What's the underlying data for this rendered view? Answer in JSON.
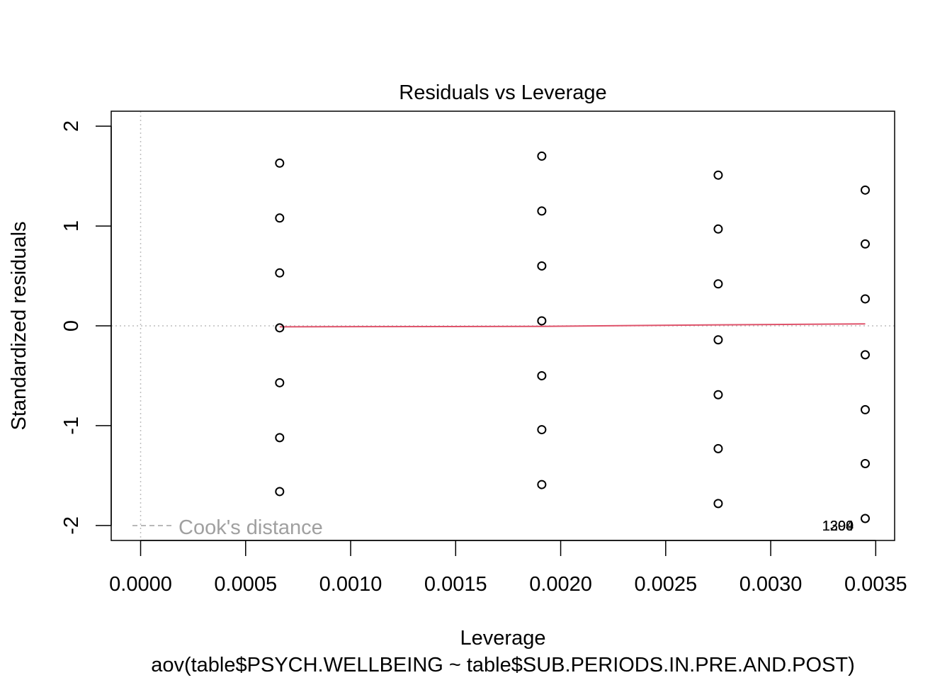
{
  "chart_data": {
    "type": "scatter",
    "title": "Residuals vs Leverage",
    "xlabel": "Leverage",
    "subtitle": "aov(table$PSYCH.WELLBEING ~ table$SUB.PERIODS.IN.PRE.AND.POST)",
    "ylabel": "Standardized residuals",
    "xlim": [
      -0.00014,
      0.00359
    ],
    "ylim": [
      -2.15,
      2.15
    ],
    "x_ticks": [
      0.0,
      0.0005,
      0.001,
      0.0015,
      0.002,
      0.0025,
      0.003,
      0.0035
    ],
    "x_tick_labels": [
      "0.0000",
      "0.0005",
      "0.0010",
      "0.0015",
      "0.0020",
      "0.0025",
      "0.0030",
      "0.0035"
    ],
    "y_ticks": [
      -2,
      -1,
      0,
      1,
      2
    ],
    "y_tick_labels": [
      "-2",
      "-1",
      "0",
      "1",
      "2"
    ],
    "series": [
      {
        "points": [
          [
            0.000662,
            1.63
          ],
          [
            0.000662,
            1.08
          ],
          [
            0.000662,
            0.53
          ],
          [
            0.000662,
            -0.02
          ],
          [
            0.000662,
            -0.57
          ],
          [
            0.000662,
            -1.12
          ],
          [
            0.000662,
            -1.66
          ],
          [
            0.00191,
            1.7
          ],
          [
            0.00191,
            1.15
          ],
          [
            0.00191,
            0.6
          ],
          [
            0.00191,
            0.05
          ],
          [
            0.00191,
            -0.5
          ],
          [
            0.00191,
            -1.04
          ],
          [
            0.00191,
            -1.59
          ],
          [
            0.00275,
            1.51
          ],
          [
            0.00275,
            0.97
          ],
          [
            0.00275,
            0.42
          ],
          [
            0.00275,
            -0.14
          ],
          [
            0.00275,
            -0.69
          ],
          [
            0.00275,
            -1.23
          ],
          [
            0.00275,
            -1.78
          ],
          [
            0.00345,
            1.36
          ],
          [
            0.00345,
            0.82
          ],
          [
            0.00345,
            0.27
          ],
          [
            0.00345,
            -0.29
          ],
          [
            0.00345,
            -0.84
          ],
          [
            0.00345,
            -1.38
          ],
          [
            0.00345,
            -1.93
          ]
        ],
        "color": "#000000"
      }
    ],
    "smooth_line": {
      "x": [
        0.000662,
        0.00191,
        0.00275,
        0.00345
      ],
      "y": [
        -0.01,
        -0.005,
        0.01,
        0.02
      ],
      "color": "#DF536B"
    },
    "reference_lines": {
      "h": 0,
      "v": 0,
      "color": "#BEBEBE"
    },
    "point_labels": [
      {
        "text": "1399",
        "x": 0.00332,
        "y": -2.0
      },
      {
        "text": "1300",
        "x": 0.00332,
        "y": -2.0
      },
      {
        "text": "1204",
        "x": 0.00332,
        "y": -2.0
      }
    ],
    "legend": {
      "entry": "Cook's distance",
      "position": "bottom-left",
      "color": "#A0A0A0"
    },
    "grid": false
  }
}
